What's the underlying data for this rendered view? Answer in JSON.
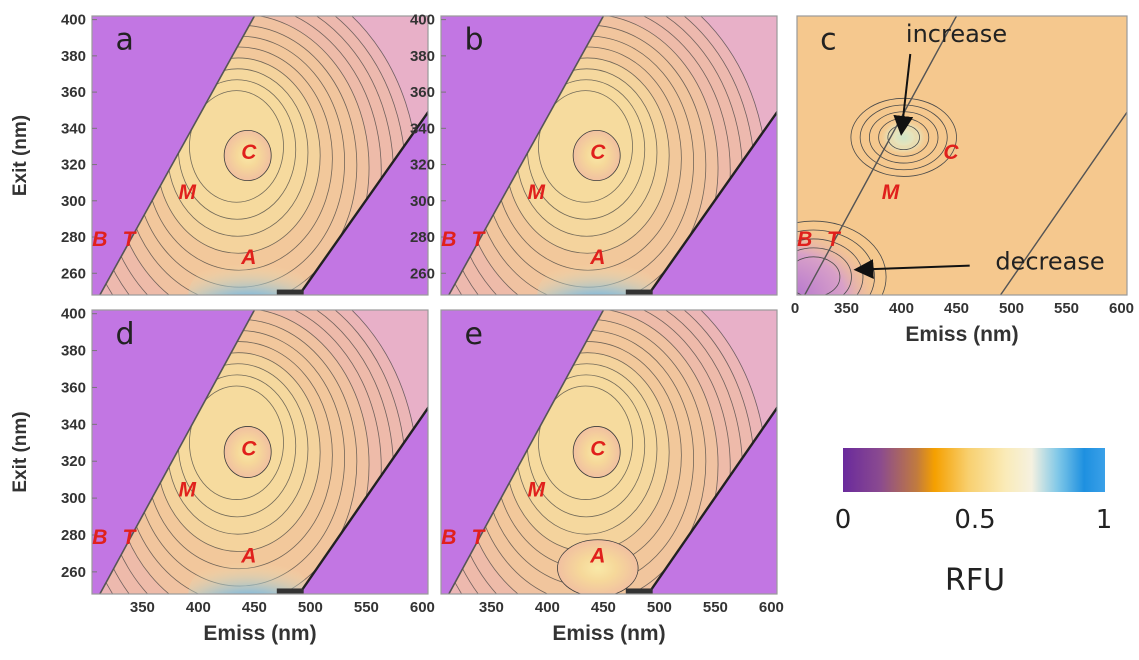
{
  "chart_data": [
    {
      "panel": "a",
      "type": "heatmap",
      "xticks": [
        350,
        400,
        450,
        500,
        550,
        600
      ],
      "yticks": [
        260,
        280,
        300,
        320,
        340,
        360,
        380,
        400
      ],
      "xlim": [
        305,
        605
      ],
      "ylim": [
        248,
        402
      ],
      "ylabel": "Exit (nm)",
      "xlabel": "",
      "peaks": [
        {
          "label": "B",
          "x": 312,
          "y": 275
        },
        {
          "label": "T",
          "x": 338,
          "y": 275
        },
        {
          "label": "M",
          "x": 390,
          "y": 301
        },
        {
          "label": "C",
          "x": 445,
          "y": 323
        },
        {
          "label": "A",
          "x": 445,
          "y": 265
        }
      ]
    },
    {
      "panel": "b",
      "type": "heatmap",
      "xticks": [
        350,
        400,
        450,
        500,
        550,
        600
      ],
      "yticks": [
        260,
        280,
        300,
        320,
        340,
        360,
        380,
        400
      ],
      "xlim": [
        305,
        605
      ],
      "ylim": [
        248,
        402
      ],
      "xlabel": "",
      "ylabel": "",
      "peaks": [
        {
          "label": "B",
          "x": 312,
          "y": 275
        },
        {
          "label": "T",
          "x": 338,
          "y": 275
        },
        {
          "label": "M",
          "x": 390,
          "y": 301
        },
        {
          "label": "C",
          "x": 445,
          "y": 323
        },
        {
          "label": "A",
          "x": 445,
          "y": 265
        }
      ]
    },
    {
      "panel": "c",
      "type": "heatmap",
      "xticks": [
        350,
        400,
        450,
        500,
        550,
        600
      ],
      "xtick_partial": "0",
      "xlim": [
        305,
        605
      ],
      "ylim": [
        248,
        402
      ],
      "xlabel": "Emiss (nm)",
      "ylabel": "",
      "peaks": [
        {
          "label": "B",
          "x": 312,
          "y": 275
        },
        {
          "label": "T",
          "x": 338,
          "y": 275
        },
        {
          "label": "M",
          "x": 390,
          "y": 301
        },
        {
          "label": "C",
          "x": 445,
          "y": 323
        }
      ],
      "annotations": [
        {
          "text": "increase",
          "target_x": 400,
          "target_y": 338
        },
        {
          "text": "decrease",
          "target_x": 360,
          "target_y": 262
        }
      ]
    },
    {
      "panel": "d",
      "type": "heatmap",
      "xticks": [
        350,
        400,
        450,
        500,
        550,
        600
      ],
      "yticks": [
        260,
        280,
        300,
        320,
        340,
        360,
        380,
        400
      ],
      "xlim": [
        305,
        605
      ],
      "ylim": [
        248,
        402
      ],
      "xlabel": "Emiss (nm)",
      "ylabel": "Exit (nm)",
      "peaks": [
        {
          "label": "B",
          "x": 312,
          "y": 275
        },
        {
          "label": "T",
          "x": 338,
          "y": 275
        },
        {
          "label": "M",
          "x": 390,
          "y": 301
        },
        {
          "label": "C",
          "x": 445,
          "y": 323
        },
        {
          "label": "A",
          "x": 445,
          "y": 265
        }
      ]
    },
    {
      "panel": "e",
      "type": "heatmap",
      "xticks": [
        350,
        400,
        450,
        500,
        550,
        600
      ],
      "xlim": [
        305,
        605
      ],
      "ylim": [
        248,
        402
      ],
      "xlabel": "Emiss (nm)",
      "ylabel": "",
      "peaks": [
        {
          "label": "B",
          "x": 312,
          "y": 275
        },
        {
          "label": "T",
          "x": 338,
          "y": 275
        },
        {
          "label": "M",
          "x": 390,
          "y": 301
        },
        {
          "label": "C",
          "x": 445,
          "y": 323
        },
        {
          "label": "A",
          "x": 445,
          "y": 265
        }
      ]
    }
  ],
  "colorbar": {
    "min_label": "0",
    "mid_label": "0.5",
    "max_label": "1",
    "title": "RFU",
    "stops": [
      "#6a2a9c",
      "#8a4a90",
      "#c07a40",
      "#f5a000",
      "#f8d070",
      "#faebb8",
      "#f5f1e0",
      "#80c8e8",
      "#1e90e0",
      "#3aa0e8"
    ]
  },
  "colors": {
    "background_purple": "#c276e3",
    "fill_light": "#e8b0c8",
    "fill_mid": "#f2c69a",
    "fill_core": "#f7e2a0",
    "fill_blue": "#5aa0e0",
    "fill_c_bg": "#f5c88e",
    "fill_c_increase": "#d8e6c4",
    "peak_red": "#e0201c"
  }
}
